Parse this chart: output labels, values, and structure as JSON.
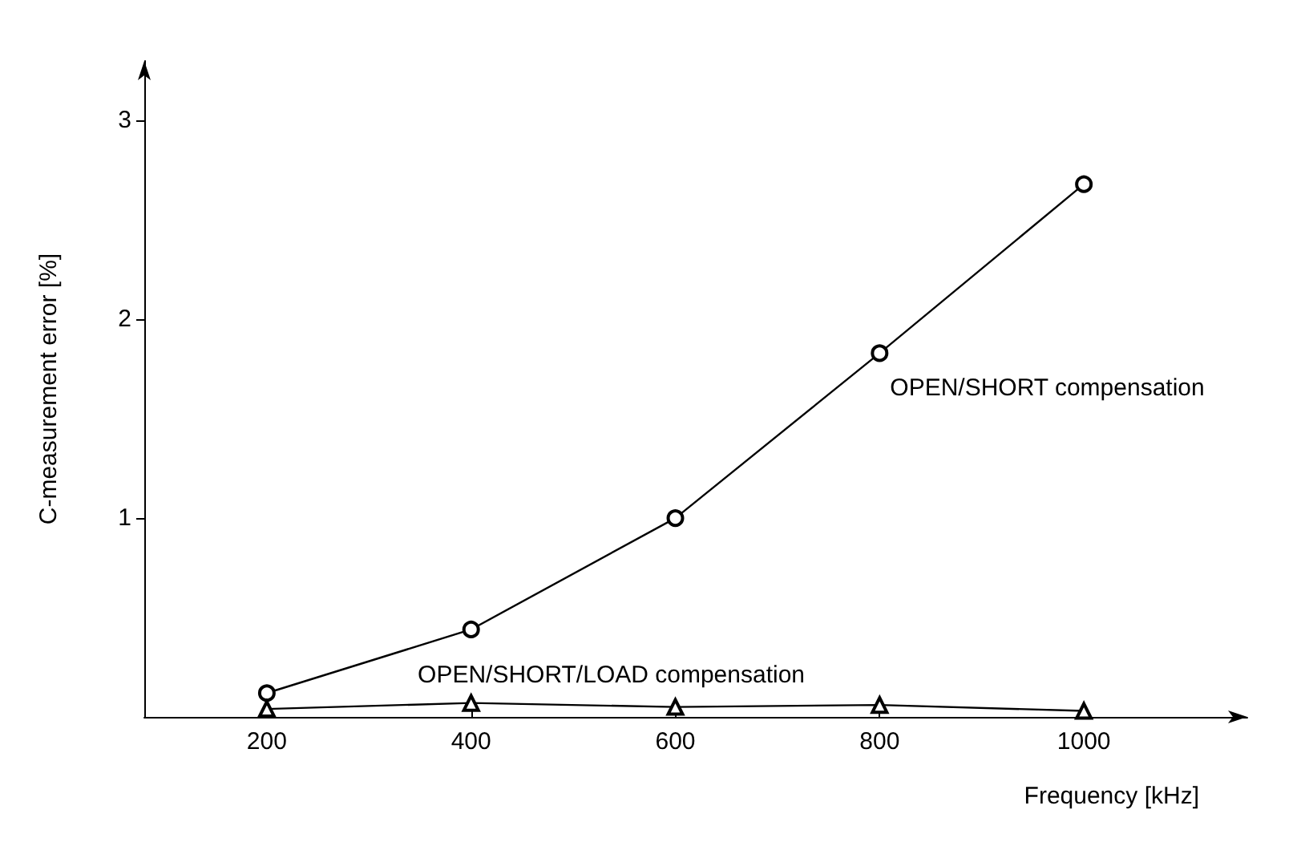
{
  "chart_data": {
    "type": "line",
    "xlabel": "Frequency [kHz]",
    "ylabel": "C-measurement error [%]",
    "x": [
      200,
      400,
      600,
      800,
      1000
    ],
    "series": [
      {
        "name": "OPEN/SHORT compensation",
        "color": "#000000",
        "marker": "circle",
        "values": [
          0.12,
          0.44,
          1.0,
          1.83,
          2.68
        ]
      },
      {
        "name": "OPEN/SHORT/LOAD compensation",
        "color": "#000000",
        "marker": "triangle",
        "values": [
          0.04,
          0.07,
          0.05,
          0.06,
          0.03
        ]
      }
    ],
    "xlim": [
      80,
      1160
    ],
    "xticks": [
      200,
      400,
      600,
      800,
      1000
    ],
    "ylim": [
      0,
      3.3
    ],
    "yticks": [
      1,
      2,
      3
    ],
    "grid": false,
    "legend": false
  }
}
